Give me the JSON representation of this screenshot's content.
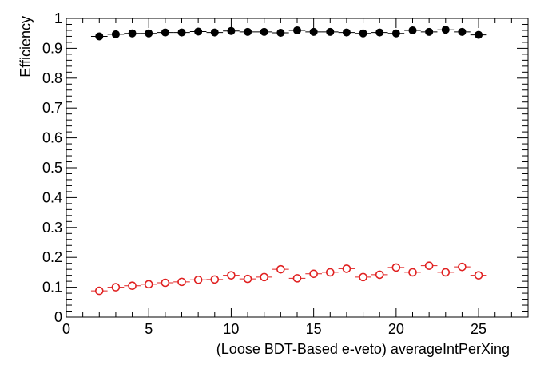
{
  "chart_data": {
    "type": "scatter",
    "title": "",
    "xlabel": "(Loose BDT-Based e-veto) averageIntPerXing",
    "ylabel": "Efficiency",
    "xlim": [
      0,
      28
    ],
    "ylim": [
      0,
      1
    ],
    "x_ticks": [
      0,
      5,
      10,
      15,
      20,
      25
    ],
    "y_ticks": [
      0,
      0.1,
      0.2,
      0.3,
      0.4,
      0.5,
      0.6,
      0.7,
      0.8,
      0.9,
      1
    ],
    "x_tick_labels": [
      "0",
      "5",
      "10",
      "15",
      "20",
      "25"
    ],
    "y_tick_labels": [
      "0",
      "0.1",
      "0.2",
      "0.3",
      "0.4",
      "0.5",
      "0.6",
      "0.7",
      "0.8",
      "0.9",
      "1"
    ],
    "grid": false,
    "legend": "none",
    "x_error": 0.5,
    "series": [
      {
        "marker": "filled-circle",
        "color": "#000000",
        "x": [
          2,
          3,
          4,
          5,
          6,
          7,
          8,
          9,
          10,
          11,
          12,
          13,
          14,
          15,
          16,
          17,
          18,
          19,
          20,
          21,
          22,
          23,
          24,
          25
        ],
        "y": [
          0.94,
          0.947,
          0.95,
          0.95,
          0.953,
          0.953,
          0.956,
          0.953,
          0.958,
          0.955,
          0.955,
          0.952,
          0.96,
          0.955,
          0.955,
          0.953,
          0.95,
          0.953,
          0.95,
          0.96,
          0.955,
          0.962,
          0.955,
          0.945
        ],
        "yerr": [
          0.006,
          0.004,
          0.003,
          0.003,
          0.003,
          0.003,
          0.003,
          0.003,
          0.003,
          0.003,
          0.003,
          0.003,
          0.003,
          0.003,
          0.003,
          0.004,
          0.004,
          0.004,
          0.005,
          0.005,
          0.005,
          0.006,
          0.006,
          0.007
        ]
      },
      {
        "marker": "open-circle",
        "color": "#e02020",
        "x": [
          2,
          3,
          4,
          5,
          6,
          7,
          8,
          9,
          10,
          11,
          12,
          13,
          14,
          15,
          16,
          17,
          18,
          19,
          20,
          21,
          22,
          23,
          24,
          25
        ],
        "y": [
          0.088,
          0.1,
          0.105,
          0.11,
          0.115,
          0.118,
          0.125,
          0.126,
          0.14,
          0.128,
          0.134,
          0.16,
          0.13,
          0.145,
          0.15,
          0.162,
          0.134,
          0.142,
          0.166,
          0.15,
          0.172,
          0.15,
          0.168,
          0.14
        ],
        "yerr": [
          0.008,
          0.006,
          0.005,
          0.005,
          0.005,
          0.005,
          0.005,
          0.005,
          0.005,
          0.005,
          0.006,
          0.006,
          0.006,
          0.006,
          0.006,
          0.007,
          0.007,
          0.007,
          0.008,
          0.008,
          0.008,
          0.009,
          0.009,
          0.01
        ]
      }
    ]
  }
}
